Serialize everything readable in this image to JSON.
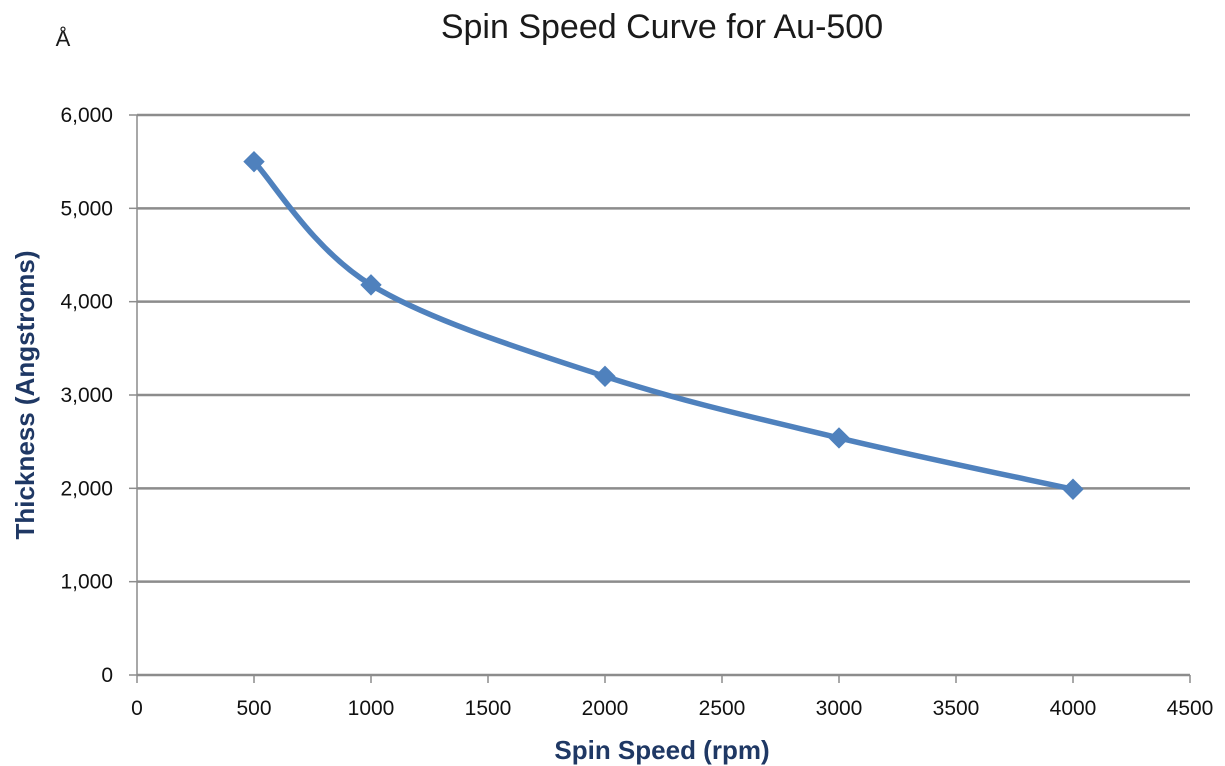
{
  "chart_data": {
    "type": "line",
    "title": "Spin Speed Curve for Au-500",
    "unit_symbol": "Å",
    "xlabel": "Spin Speed (rpm)",
    "ylabel": "Thickness (Angstroms)",
    "xlim": [
      0,
      4500
    ],
    "ylim": [
      0,
      6000
    ],
    "x_ticks": [
      0,
      500,
      1000,
      1500,
      2000,
      2500,
      3000,
      3500,
      4000,
      4500
    ],
    "y_ticks": [
      0,
      1000,
      2000,
      3000,
      4000,
      5000,
      6000
    ],
    "x_tick_labels": [
      "0",
      "500",
      "1000",
      "1500",
      "2000",
      "2500",
      "3000",
      "3500",
      "4000",
      "4500"
    ],
    "y_tick_labels": [
      "0",
      "1,000",
      "2,000",
      "3,000",
      "4,000",
      "5,000",
      "6,000"
    ],
    "grid": "horizontal",
    "smoothed": true,
    "marker": "diamond",
    "series": [
      {
        "x": [
          500,
          1000,
          2000,
          3000,
          4000
        ],
        "values": [
          5500,
          4180,
          3200,
          2540,
          1990
        ]
      }
    ],
    "colors": {
      "series": "#4f81bd",
      "grid": "#8c8c8c",
      "axis_label": "#1f3864",
      "text": "#111111"
    }
  }
}
